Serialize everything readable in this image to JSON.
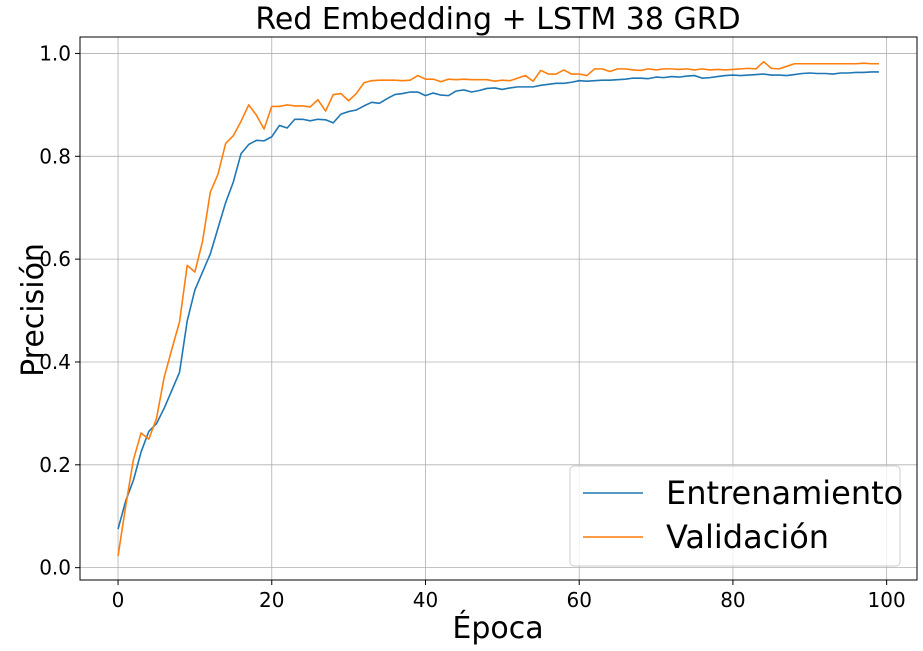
{
  "chart_data": {
    "type": "line",
    "title": "Red Embedding + LSTM 38 GRD",
    "xlabel": "Época",
    "ylabel": "Precisión",
    "xlim": [
      -4.95,
      103.95
    ],
    "ylim": [
      -0.024,
      1.032
    ],
    "xticks": [
      0,
      20,
      40,
      60,
      80,
      100
    ],
    "xtick_labels": [
      "0",
      "20",
      "40",
      "60",
      "80",
      "100"
    ],
    "yticks": [
      0.0,
      0.2,
      0.4,
      0.6,
      0.8,
      1.0
    ],
    "ytick_labels": [
      "0.0",
      "0.2",
      "0.4",
      "0.6",
      "0.8",
      "1.0"
    ],
    "grid": true,
    "legend_position": "lower-right",
    "x": [
      0,
      1,
      2,
      3,
      4,
      5,
      6,
      7,
      8,
      9,
      10,
      11,
      12,
      13,
      14,
      15,
      16,
      17,
      18,
      19,
      20,
      21,
      22,
      23,
      24,
      25,
      26,
      27,
      28,
      29,
      30,
      31,
      32,
      33,
      34,
      35,
      36,
      37,
      38,
      39,
      40,
      41,
      42,
      43,
      44,
      45,
      46,
      47,
      48,
      49,
      50,
      51,
      52,
      53,
      54,
      55,
      56,
      57,
      58,
      59,
      60,
      61,
      62,
      63,
      64,
      65,
      66,
      67,
      68,
      69,
      70,
      71,
      72,
      73,
      74,
      75,
      76,
      77,
      78,
      79,
      80,
      81,
      82,
      83,
      84,
      85,
      86,
      87,
      88,
      89,
      90,
      91,
      92,
      93,
      94,
      95,
      96,
      97,
      98,
      99
    ],
    "series": [
      {
        "name": "Entrenamiento",
        "color": "#1f77b4",
        "values": [
          0.075,
          0.13,
          0.17,
          0.225,
          0.265,
          0.28,
          0.31,
          0.345,
          0.38,
          0.48,
          0.54,
          0.575,
          0.61,
          0.66,
          0.71,
          0.75,
          0.805,
          0.823,
          0.831,
          0.83,
          0.838,
          0.86,
          0.855,
          0.872,
          0.872,
          0.869,
          0.872,
          0.871,
          0.865,
          0.882,
          0.887,
          0.89,
          0.898,
          0.905,
          0.903,
          0.912,
          0.92,
          0.922,
          0.925,
          0.925,
          0.918,
          0.923,
          0.919,
          0.918,
          0.927,
          0.929,
          0.925,
          0.928,
          0.932,
          0.933,
          0.93,
          0.933,
          0.935,
          0.935,
          0.935,
          0.938,
          0.94,
          0.942,
          0.942,
          0.944,
          0.947,
          0.946,
          0.947,
          0.948,
          0.948,
          0.949,
          0.95,
          0.952,
          0.952,
          0.951,
          0.954,
          0.953,
          0.955,
          0.954,
          0.956,
          0.957,
          0.952,
          0.953,
          0.955,
          0.957,
          0.958,
          0.957,
          0.958,
          0.959,
          0.96,
          0.958,
          0.958,
          0.957,
          0.959,
          0.961,
          0.962,
          0.961,
          0.961,
          0.96,
          0.962,
          0.962,
          0.963,
          0.963,
          0.964,
          0.964
        ]
      },
      {
        "name": "Validación",
        "color": "#ff7f0e",
        "values": [
          0.023,
          0.12,
          0.21,
          0.262,
          0.25,
          0.29,
          0.37,
          0.425,
          0.478,
          0.588,
          0.575,
          0.635,
          0.73,
          0.765,
          0.825,
          0.84,
          0.868,
          0.9,
          0.88,
          0.853,
          0.897,
          0.897,
          0.9,
          0.898,
          0.898,
          0.896,
          0.91,
          0.888,
          0.92,
          0.922,
          0.908,
          0.922,
          0.943,
          0.947,
          0.948,
          0.948,
          0.948,
          0.947,
          0.948,
          0.957,
          0.95,
          0.95,
          0.945,
          0.95,
          0.949,
          0.95,
          0.949,
          0.949,
          0.949,
          0.946,
          0.948,
          0.947,
          0.952,
          0.957,
          0.946,
          0.967,
          0.96,
          0.96,
          0.968,
          0.96,
          0.96,
          0.957,
          0.97,
          0.97,
          0.965,
          0.97,
          0.97,
          0.968,
          0.967,
          0.97,
          0.968,
          0.97,
          0.97,
          0.969,
          0.97,
          0.968,
          0.97,
          0.968,
          0.969,
          0.968,
          0.969,
          0.97,
          0.971,
          0.97,
          0.984,
          0.971,
          0.97,
          0.975,
          0.98,
          0.98,
          0.98,
          0.98,
          0.98,
          0.98,
          0.98,
          0.98,
          0.98,
          0.981,
          0.98,
          0.98
        ]
      }
    ]
  }
}
